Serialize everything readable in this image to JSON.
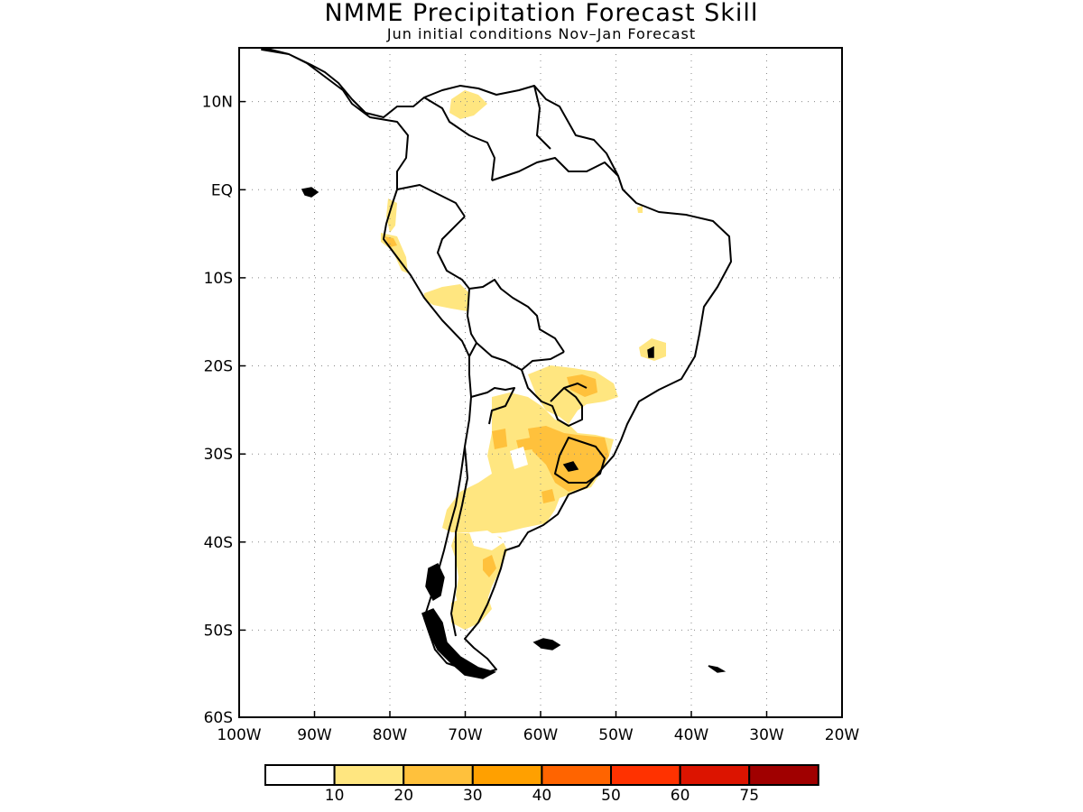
{
  "title": "NMME Precipitation Forecast Skill",
  "subtitle": "Jun initial conditions   Nov–Jan Forecast",
  "map": {
    "region": "South America",
    "lat_ticks": [
      "10N",
      "EQ",
      "10S",
      "20S",
      "30S",
      "40S",
      "50S",
      "60S"
    ],
    "lon_ticks": [
      "100W",
      "90W",
      "80W",
      "70W",
      "60W",
      "50W",
      "40W",
      "30W",
      "20W"
    ],
    "lon_range": [
      -100,
      -20
    ],
    "lat_range": [
      -60,
      16
    ],
    "gridlines": "dotted"
  },
  "colorbar": {
    "labels": [
      "10",
      "20",
      "30",
      "40",
      "50",
      "60",
      "75"
    ],
    "colors": [
      "#ffffff",
      "#ffe680",
      "#ffc13c",
      "#ffa000",
      "#ff6400",
      "#ff3200",
      "#dc1400",
      "#a00000"
    ]
  }
}
